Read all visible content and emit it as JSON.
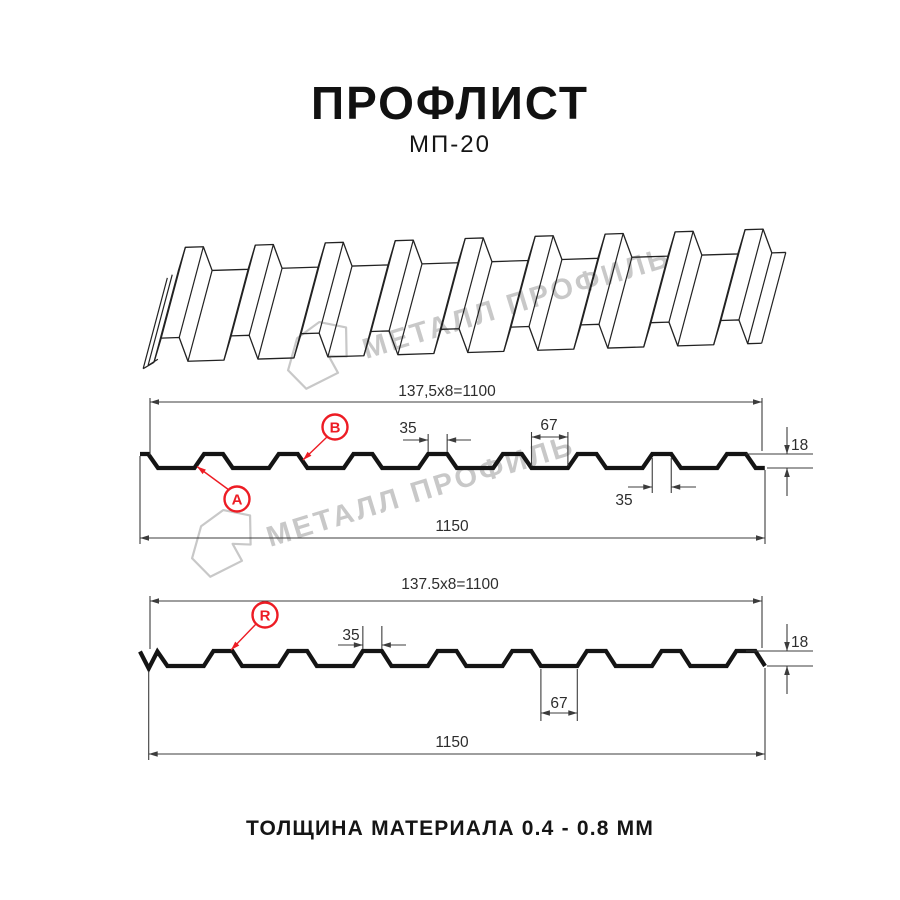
{
  "header": {
    "title": "ПРОФЛИСТ",
    "subtitle": "МП-20"
  },
  "watermark": {
    "brand": "МЕТАЛЛ ПРОФИЛЬ"
  },
  "sections": {
    "top": {
      "coverage": "137,5x8=1100",
      "overall": "1150",
      "crest_width": "35",
      "crest_width_right": "35",
      "valley_width": "67",
      "height": "18",
      "label_a": "A",
      "label_b": "B"
    },
    "bottom": {
      "coverage": "137.5x8=1100",
      "overall": "1150",
      "crest_width": "35",
      "valley_width": "67",
      "height": "18",
      "label_r": "R"
    }
  },
  "footer": {
    "note": "ТОЛЩИНА МАТЕРИАЛА 0.4 - 0.8 ММ"
  },
  "colors": {
    "ink": "#141414",
    "line": "#222222",
    "dim": "#3c3c3c",
    "red": "#ed1c24",
    "watermark": "#c8c8c8"
  }
}
